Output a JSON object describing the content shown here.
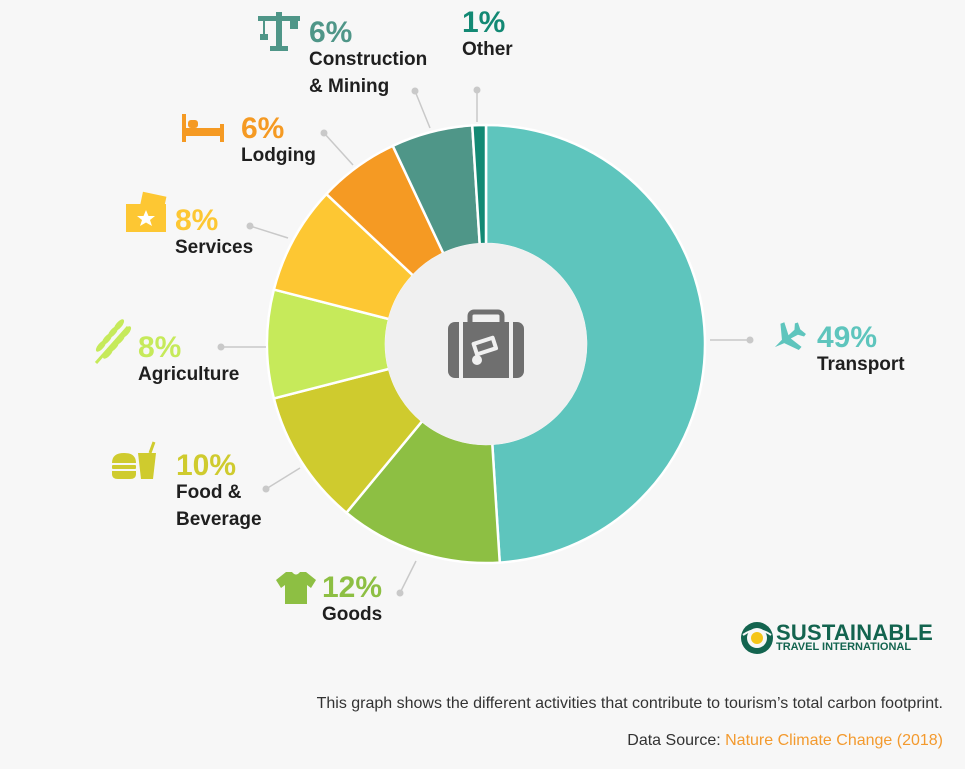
{
  "chart_data": {
    "type": "donut",
    "title": "",
    "slices": [
      {
        "label": "Transport",
        "value": 49,
        "value_label": "49%",
        "color": "#5ec5bd",
        "icon": "airplane-icon"
      },
      {
        "label": "Goods",
        "value": 12,
        "value_label": "12%",
        "color": "#8dbf43",
        "icon": "tshirt-icon"
      },
      {
        "label": "Food & Beverage",
        "label_lines": [
          "Food &",
          "Beverage"
        ],
        "value": 10,
        "value_label": "10%",
        "color": "#cfcb2e",
        "icon": "burger-drink-icon"
      },
      {
        "label": "Agriculture",
        "value": 8,
        "value_label": "8%",
        "color": "#c6ea5a",
        "icon": "wheat-icon"
      },
      {
        "label": "Services",
        "value": 8,
        "value_label": "8%",
        "color": "#fdc733",
        "icon": "ticket-icon"
      },
      {
        "label": "Lodging",
        "value": 6,
        "value_label": "6%",
        "color": "#f59a23",
        "icon": "bed-icon"
      },
      {
        "label": "Construction & Mining",
        "label_lines": [
          "Construction",
          "& Mining"
        ],
        "value": 6,
        "value_label": "6%",
        "color": "#4f9688",
        "icon": "crane-icon"
      },
      {
        "label": "Other",
        "value": 1,
        "value_label": "1%",
        "color": "#138974",
        "icon": ""
      }
    ],
    "center_icon": "suitcase-icon",
    "legend": "none"
  },
  "footer": {
    "caption": "This graph shows the different activities that contribute to tourism’s total carbon footprint.",
    "source_prefix": "Data Source: ",
    "source_name": "Nature Climate Change (2018)"
  },
  "logo": {
    "line1": "SUSTAINABLE",
    "line2": "TRAVEL INTERNATIONAL"
  },
  "colors": {
    "background": "#f7f7f7",
    "label_text": "#1f1f1f",
    "leader": "#c9c9c9",
    "center_disc": "#f0f0f0",
    "center_icon": "#6f6f6f",
    "brand_green": "#13644f",
    "link_orange": "#f39a2e"
  }
}
